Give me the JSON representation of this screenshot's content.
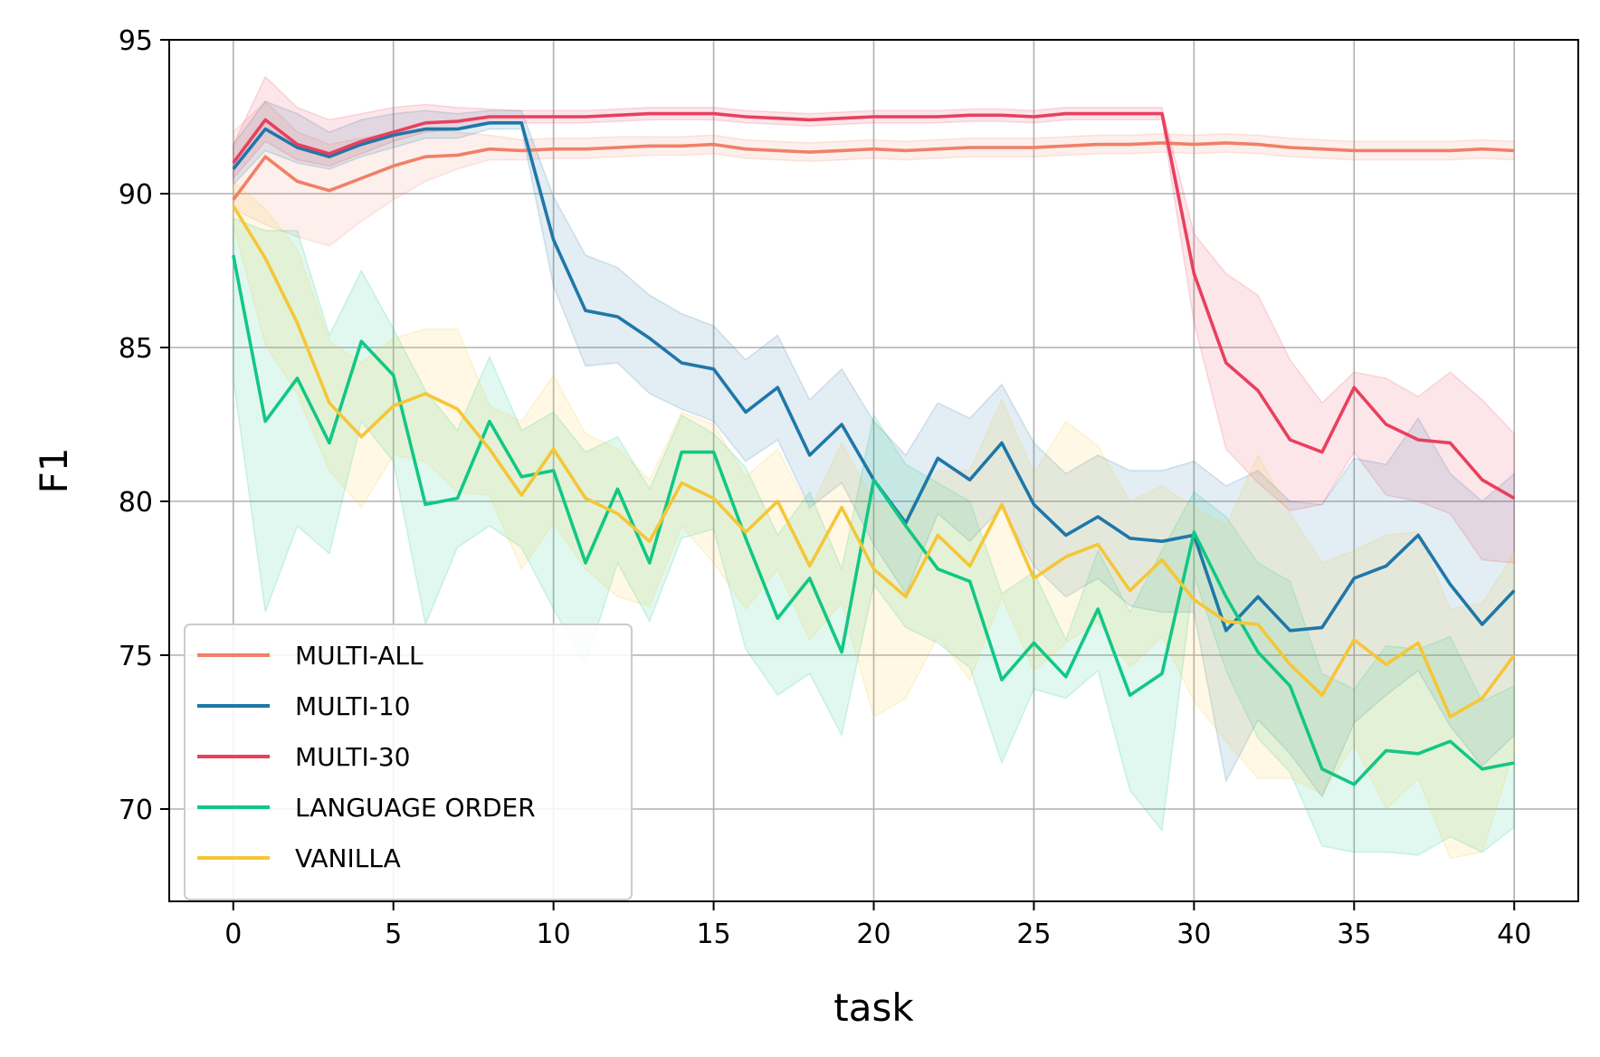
{
  "chart_data": {
    "type": "line",
    "xlabel": "task",
    "ylabel": "F1",
    "xlim": [
      -2,
      42
    ],
    "ylim": [
      67,
      95
    ],
    "xticks": [
      0,
      5,
      10,
      15,
      20,
      25,
      30,
      35,
      40
    ],
    "yticks": [
      70,
      75,
      80,
      85,
      90,
      95
    ],
    "grid": true,
    "legend_position": "lower-left",
    "series": [
      {
        "name": "MULTI-ALL",
        "color": "#f08068",
        "x": [
          0,
          1,
          2,
          3,
          4,
          5,
          6,
          7,
          8,
          9,
          10,
          11,
          12,
          13,
          14,
          15,
          16,
          17,
          18,
          19,
          20,
          21,
          22,
          23,
          24,
          25,
          26,
          27,
          28,
          29,
          30,
          31,
          32,
          33,
          34,
          35,
          36,
          37,
          38,
          39,
          40
        ],
        "values": [
          89.8,
          91.2,
          90.4,
          90.1,
          90.5,
          90.9,
          91.2,
          91.25,
          91.45,
          91.4,
          91.45,
          91.45,
          91.5,
          91.55,
          91.55,
          91.6,
          91.45,
          91.4,
          91.35,
          91.4,
          91.45,
          91.4,
          91.45,
          91.5,
          91.5,
          91.5,
          91.55,
          91.6,
          91.6,
          91.65,
          91.6,
          91.65,
          91.6,
          91.5,
          91.45,
          91.4,
          91.4,
          91.4,
          91.4,
          91.45,
          91.4
        ],
        "lower": [
          89.5,
          89.0,
          88.6,
          88.3,
          89.1,
          89.8,
          90.4,
          90.8,
          91.1,
          91.1,
          91.15,
          91.15,
          91.2,
          91.25,
          91.25,
          91.3,
          91.15,
          91.1,
          91.05,
          91.1,
          91.15,
          91.1,
          91.15,
          91.2,
          91.2,
          91.2,
          91.25,
          91.3,
          91.3,
          91.35,
          91.3,
          91.35,
          91.3,
          91.2,
          91.15,
          91.1,
          91.1,
          91.1,
          91.1,
          91.15,
          91.1
        ],
        "upper": [
          92.0,
          93.0,
          92.0,
          91.6,
          91.8,
          92.0,
          92.1,
          92.0,
          91.9,
          91.75,
          91.8,
          91.8,
          91.85,
          91.85,
          91.85,
          91.9,
          91.75,
          91.7,
          91.65,
          91.7,
          91.75,
          91.7,
          91.75,
          91.8,
          91.8,
          91.8,
          91.85,
          91.9,
          91.9,
          91.95,
          91.9,
          91.95,
          91.9,
          91.8,
          91.75,
          91.7,
          91.7,
          91.7,
          91.7,
          91.75,
          91.7
        ]
      },
      {
        "name": "MULTI-10",
        "color": "#1f77a8",
        "x": [
          0,
          1,
          2,
          3,
          4,
          5,
          6,
          7,
          8,
          9,
          10,
          11,
          12,
          13,
          14,
          15,
          16,
          17,
          18,
          19,
          20,
          21,
          22,
          23,
          24,
          25,
          26,
          27,
          28,
          29,
          30,
          31,
          32,
          33,
          34,
          35,
          36,
          37,
          38,
          39,
          40
        ],
        "values": [
          90.8,
          92.1,
          91.5,
          91.2,
          91.6,
          91.9,
          92.1,
          92.1,
          92.3,
          92.3,
          88.5,
          86.2,
          86.0,
          85.3,
          84.5,
          84.3,
          82.9,
          83.7,
          81.5,
          82.5,
          80.7,
          79.3,
          81.4,
          80.7,
          81.9,
          79.9,
          78.9,
          79.5,
          78.8,
          78.7,
          78.9,
          75.8,
          76.9,
          75.8,
          75.9,
          77.5,
          77.9,
          78.9,
          77.3,
          76.0,
          77.1
        ],
        "lower": [
          90.3,
          91.4,
          91.0,
          90.8,
          91.2,
          91.5,
          91.8,
          91.8,
          92.1,
          92.1,
          87.0,
          84.4,
          84.5,
          83.5,
          83.0,
          82.6,
          81.3,
          82.0,
          79.8,
          80.6,
          78.6,
          77.0,
          79.6,
          78.7,
          79.8,
          77.9,
          76.9,
          77.5,
          76.6,
          76.4,
          76.4,
          70.9,
          72.9,
          71.8,
          70.4,
          72.8,
          73.7,
          74.5,
          72.7,
          71.4,
          72.4
        ],
        "upper": [
          91.6,
          93.0,
          92.6,
          92.0,
          92.4,
          92.6,
          92.7,
          92.6,
          92.7,
          92.7,
          89.9,
          88.0,
          87.6,
          86.7,
          86.1,
          85.7,
          84.6,
          85.4,
          83.3,
          84.3,
          82.6,
          81.5,
          83.2,
          82.7,
          83.8,
          81.9,
          80.9,
          81.5,
          81.0,
          81.0,
          81.3,
          80.5,
          81.0,
          80.0,
          79.9,
          81.4,
          81.2,
          82.7,
          80.9,
          80.0,
          80.9
        ]
      },
      {
        "name": "MULTI-30",
        "color": "#e8405e",
        "x": [
          0,
          1,
          2,
          3,
          4,
          5,
          6,
          7,
          8,
          9,
          10,
          11,
          12,
          13,
          14,
          15,
          16,
          17,
          18,
          19,
          20,
          21,
          22,
          23,
          24,
          25,
          26,
          27,
          28,
          29,
          30,
          31,
          32,
          33,
          34,
          35,
          36,
          37,
          38,
          39,
          40
        ],
        "values": [
          91.0,
          92.4,
          91.6,
          91.3,
          91.7,
          92.0,
          92.3,
          92.35,
          92.5,
          92.5,
          92.5,
          92.5,
          92.55,
          92.6,
          92.6,
          92.6,
          92.5,
          92.45,
          92.4,
          92.45,
          92.5,
          92.5,
          92.5,
          92.55,
          92.55,
          92.5,
          92.6,
          92.6,
          92.6,
          92.6,
          87.4,
          84.5,
          83.6,
          82.0,
          81.6,
          83.7,
          82.5,
          82.0,
          81.9,
          80.7,
          80.1
        ],
        "lower": [
          90.5,
          91.7,
          91.1,
          90.9,
          91.3,
          91.7,
          92.0,
          92.1,
          92.3,
          92.3,
          92.3,
          92.3,
          92.35,
          92.4,
          92.4,
          92.4,
          92.3,
          92.25,
          92.2,
          92.25,
          92.3,
          92.3,
          92.3,
          92.35,
          92.35,
          92.3,
          92.4,
          92.4,
          92.4,
          92.4,
          85.8,
          81.7,
          80.6,
          79.7,
          79.9,
          81.6,
          80.2,
          80.0,
          79.6,
          78.1,
          78.0
        ],
        "upper": [
          91.6,
          93.8,
          92.8,
          92.4,
          92.6,
          92.8,
          92.9,
          92.8,
          92.75,
          92.7,
          92.7,
          92.7,
          92.75,
          92.8,
          92.8,
          92.8,
          92.7,
          92.65,
          92.6,
          92.65,
          92.7,
          92.7,
          92.7,
          92.75,
          92.75,
          92.7,
          92.8,
          92.8,
          92.8,
          92.8,
          88.7,
          87.4,
          86.7,
          84.6,
          83.2,
          84.2,
          84.0,
          83.4,
          84.2,
          83.3,
          82.2
        ]
      },
      {
        "name": "LANGUAGE ORDER",
        "color": "#12c784",
        "x": [
          0,
          1,
          2,
          3,
          4,
          5,
          6,
          7,
          8,
          9,
          10,
          11,
          12,
          13,
          14,
          15,
          16,
          17,
          18,
          19,
          20,
          21,
          22,
          23,
          24,
          25,
          26,
          27,
          28,
          29,
          30,
          31,
          32,
          33,
          34,
          35,
          36,
          37,
          38,
          39,
          40
        ],
        "values": [
          88.0,
          82.6,
          84.0,
          81.9,
          85.2,
          84.1,
          79.9,
          80.1,
          82.6,
          80.8,
          81.0,
          78.0,
          80.4,
          78.0,
          81.6,
          81.6,
          78.8,
          76.2,
          77.5,
          75.1,
          80.7,
          79.2,
          77.8,
          77.4,
          74.2,
          75.4,
          74.3,
          76.5,
          73.7,
          74.4,
          79.0,
          76.9,
          75.1,
          74.0,
          71.3,
          70.8,
          71.9,
          71.8,
          72.2,
          71.3,
          71.5
        ],
        "lower": [
          84.0,
          76.4,
          79.2,
          78.3,
          82.6,
          81.3,
          76.0,
          78.5,
          79.2,
          78.5,
          76.5,
          74.7,
          78.0,
          76.1,
          78.8,
          79.1,
          75.2,
          73.7,
          74.4,
          72.4,
          77.3,
          75.9,
          75.4,
          74.6,
          71.5,
          73.9,
          73.6,
          74.5,
          70.6,
          69.3,
          77.6,
          74.5,
          72.3,
          71.2,
          68.8,
          68.6,
          68.6,
          68.5,
          69.1,
          68.6,
          69.4
        ],
        "upper": [
          89.2,
          88.8,
          88.8,
          85.4,
          87.5,
          85.6,
          83.6,
          82.3,
          84.7,
          82.3,
          82.9,
          81.6,
          82.1,
          80.4,
          82.8,
          82.2,
          81.1,
          78.9,
          80.3,
          77.8,
          82.8,
          81.2,
          80.6,
          80.0,
          77.0,
          77.7,
          75.5,
          78.4,
          76.4,
          78.4,
          80.3,
          79.5,
          78.0,
          77.4,
          74.4,
          73.9,
          75.3,
          75.2,
          75.6,
          73.5,
          74.0
        ]
      },
      {
        "name": "VANILLA",
        "color": "#f5c637",
        "x": [
          0,
          1,
          2,
          3,
          4,
          5,
          6,
          7,
          8,
          9,
          10,
          11,
          12,
          13,
          14,
          15,
          16,
          17,
          18,
          19,
          20,
          21,
          22,
          23,
          24,
          25,
          26,
          27,
          28,
          29,
          30,
          31,
          32,
          33,
          34,
          35,
          36,
          37,
          38,
          39,
          40
        ],
        "values": [
          89.6,
          87.9,
          85.8,
          83.2,
          82.1,
          83.1,
          83.5,
          83.0,
          81.7,
          80.2,
          81.7,
          80.1,
          79.6,
          78.7,
          80.6,
          80.1,
          79.0,
          80.0,
          77.9,
          79.8,
          77.8,
          76.9,
          78.9,
          77.9,
          79.9,
          77.5,
          78.2,
          78.6,
          77.1,
          78.1,
          76.8,
          76.1,
          76.0,
          74.7,
          73.7,
          75.5,
          74.7,
          75.4,
          73.0,
          73.6,
          75.0
        ],
        "lower": [
          89.0,
          85.1,
          83.5,
          81.0,
          79.8,
          81.5,
          81.3,
          80.3,
          80.2,
          77.8,
          79.3,
          77.8,
          76.9,
          76.6,
          79.2,
          78.0,
          76.5,
          77.8,
          75.5,
          76.7,
          73.0,
          73.6,
          75.6,
          74.2,
          76.9,
          74.5,
          75.4,
          76.1,
          74.6,
          75.6,
          73.5,
          72.2,
          71.0,
          71.0,
          70.5,
          72.1,
          70.0,
          71.0,
          68.4,
          68.6,
          71.9
        ],
        "upper": [
          90.4,
          89.5,
          88.2,
          85.2,
          84.5,
          85.3,
          85.6,
          85.6,
          83.1,
          82.6,
          84.1,
          82.2,
          81.7,
          80.7,
          82.9,
          82.5,
          80.8,
          81.7,
          79.7,
          81.9,
          80.0,
          79.6,
          81.0,
          81.0,
          83.3,
          80.9,
          82.6,
          81.8,
          80.0,
          80.5,
          79.8,
          79.2,
          81.5,
          79.6,
          78.0,
          78.4,
          78.9,
          79.0,
          76.5,
          76.7,
          78.3
        ]
      }
    ]
  }
}
